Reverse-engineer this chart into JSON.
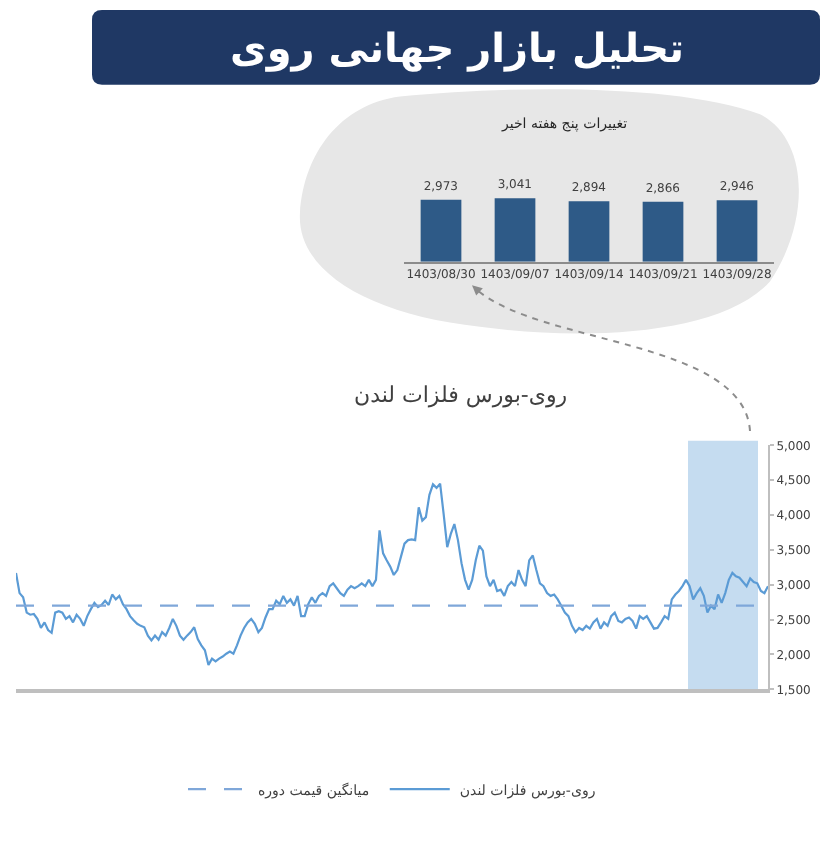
{
  "chart_data": [
    {
      "type": "other",
      "title": "تحلیل بازار جهانی روی"
    },
    {
      "type": "bar",
      "title": "تغییرات پنج هفته اخیر",
      "categories": [
        "1403/08/30",
        "1403/09/07",
        "1403/09/14",
        "1403/09/21",
        "1403/09/28"
      ],
      "values": [
        2973,
        3041,
        2894,
        2866,
        2946
      ],
      "value_labels": [
        "2,973",
        "3,041",
        "2,894",
        "2,866",
        "2,946"
      ],
      "color": "#2e5a87",
      "tick_labels": "x"
    },
    {
      "type": "line",
      "title": "روی-بورس فلزات لندن",
      "categories": [
        null,
        null,
        null,
        null,
        null,
        null,
        null,
        null,
        null,
        null,
        null,
        null,
        null,
        null,
        null,
        null,
        null,
        null,
        null,
        null,
        null,
        null,
        null,
        null,
        null,
        null,
        null,
        null,
        null,
        null,
        null,
        null,
        null,
        null,
        null,
        null,
        null,
        null,
        null,
        null,
        null,
        null,
        null,
        null,
        null,
        null,
        null,
        null,
        null,
        null,
        null,
        null,
        null,
        null,
        null,
        null,
        null,
        null,
        null,
        null,
        null,
        null,
        null,
        null,
        null,
        null,
        null,
        null,
        null,
        null,
        null,
        null,
        null,
        null,
        null,
        null,
        null,
        null,
        null,
        null,
        null,
        null,
        null,
        null,
        null,
        null,
        null,
        null,
        null,
        null,
        null,
        null,
        null,
        null,
        null,
        null,
        null,
        null,
        null,
        null,
        null,
        null,
        null,
        null,
        null,
        null,
        null,
        null,
        null,
        null,
        null,
        null,
        null,
        null,
        null,
        null,
        null,
        null,
        null,
        null,
        null,
        null,
        null,
        null,
        null,
        null,
        null,
        null,
        null,
        null,
        null,
        null,
        null,
        null,
        null,
        null,
        null,
        null,
        null,
        null,
        null,
        null,
        null,
        null,
        null,
        null,
        null,
        null,
        null,
        null,
        null,
        null,
        null,
        null,
        null,
        null,
        null,
        null,
        null,
        null,
        null,
        null,
        null,
        null,
        null,
        null,
        null,
        null,
        null,
        null,
        null,
        null,
        null,
        null,
        null,
        null,
        null,
        null,
        null,
        null,
        null,
        null,
        null,
        null,
        null,
        null,
        null,
        null,
        null,
        null,
        null,
        null,
        null,
        null,
        null,
        null,
        null,
        null,
        null,
        null,
        null,
        null,
        null,
        null,
        null,
        null,
        null,
        null,
        null,
        null,
        null,
        null
      ],
      "series": [
        {
          "name": "روی-بورس فلزات لندن",
          "color": "#5b9bd5",
          "values": [
            3170,
            2880,
            2820,
            2600,
            2570,
            2580,
            2510,
            2380,
            2460,
            2350,
            2310,
            2600,
            2620,
            2600,
            2510,
            2550,
            2460,
            2570,
            2510,
            2410,
            2550,
            2650,
            2740,
            2680,
            2710,
            2770,
            2710,
            2860,
            2790,
            2840,
            2720,
            2650,
            2550,
            2490,
            2440,
            2410,
            2390,
            2270,
            2200,
            2270,
            2210,
            2320,
            2270,
            2380,
            2510,
            2410,
            2270,
            2210,
            2270,
            2320,
            2390,
            2220,
            2130,
            2060,
            1850,
            1940,
            1900,
            1940,
            1970,
            2010,
            2040,
            2010,
            2130,
            2270,
            2380,
            2460,
            2510,
            2440,
            2320,
            2380,
            2530,
            2650,
            2650,
            2770,
            2720,
            2840,
            2740,
            2790,
            2700,
            2840,
            2550,
            2550,
            2720,
            2820,
            2740,
            2840,
            2880,
            2840,
            2980,
            3020,
            2950,
            2880,
            2840,
            2930,
            2980,
            2950,
            2980,
            3020,
            2980,
            3070,
            2980,
            3070,
            3780,
            3450,
            3350,
            3260,
            3140,
            3210,
            3400,
            3590,
            3640,
            3650,
            3640,
            4110,
            3920,
            3970,
            4290,
            4440,
            4390,
            4450,
            4010,
            3540,
            3730,
            3870,
            3640,
            3310,
            3070,
            2930,
            3070,
            3350,
            3560,
            3490,
            3120,
            2980,
            3070,
            2910,
            2930,
            2840,
            2980,
            3040,
            2980,
            3210,
            3070,
            2980,
            3350,
            3420,
            3210,
            3020,
            2980,
            2880,
            2840,
            2860,
            2790,
            2700,
            2600,
            2550,
            2410,
            2320,
            2380,
            2350,
            2410,
            2370,
            2460,
            2510,
            2370,
            2460,
            2410,
            2550,
            2600,
            2480,
            2460,
            2510,
            2530,
            2480,
            2370,
            2550,
            2510,
            2550,
            2460,
            2370,
            2380,
            2460,
            2550,
            2510,
            2790,
            2860,
            2910,
            2980,
            3070,
            2980,
            2790,
            2880,
            2950,
            2840,
            2600,
            2700,
            2650,
            2860,
            2740,
            2880,
            3070,
            3170,
            3120,
            3100,
            3040,
            2980,
            3090,
            3040,
            3020,
            2910,
            2880,
            2980
          ]
        }
      ],
      "ylim": [
        1500,
        5000
      ],
      "yticks": [
        {
          "value": 1500,
          "label": "1,500"
        },
        {
          "value": 2000,
          "label": "2,000"
        },
        {
          "value": 2500,
          "label": "2,500"
        },
        {
          "value": 3000,
          "label": "3,000"
        },
        {
          "value": 3500,
          "label": "3,500"
        },
        {
          "value": 4000,
          "label": "4,000"
        },
        {
          "value": 4500,
          "label": "4,500"
        },
        {
          "value": 5000,
          "label": "5,000"
        }
      ],
      "ref_lines": [
        {
          "axis": "y",
          "value": 2700,
          "label": "میانگین قیمت دوره",
          "color": "#7fa7d9",
          "line_style": "dashed"
        }
      ],
      "line_style": "solid",
      "grid": false,
      "legend": "bottom",
      "tick_labels": "y"
    }
  ]
}
